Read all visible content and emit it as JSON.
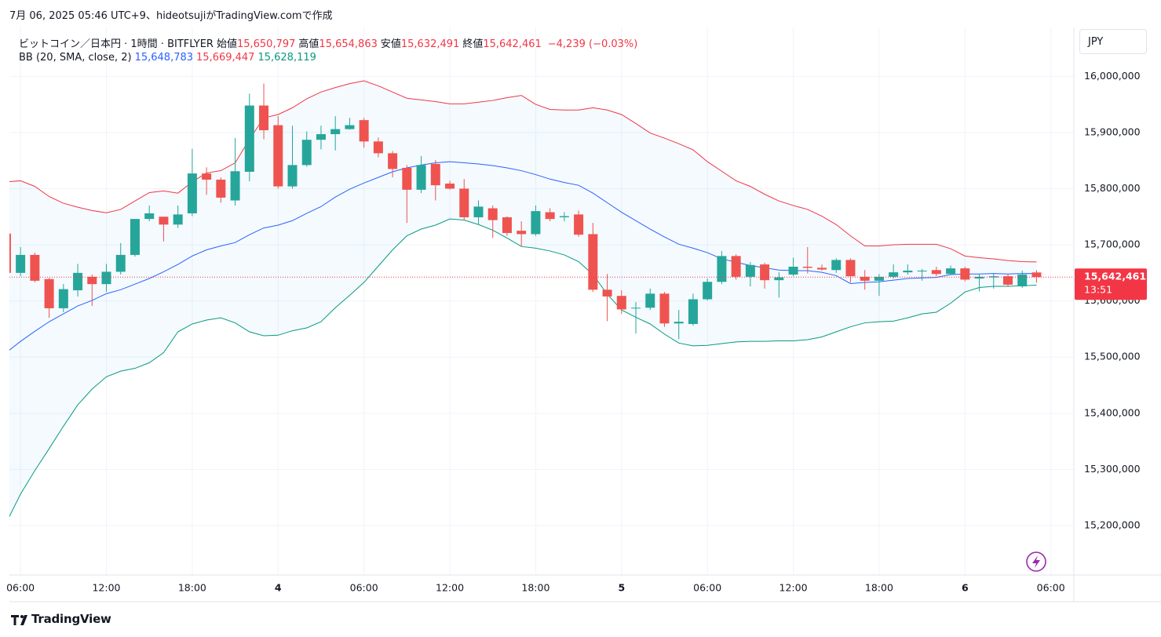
{
  "header": "7月 06, 2025 05:46 UTC+9、hideotsujiがTradingView.comで作成",
  "brand": "TradingView",
  "chart_data": {
    "type": "candlestick",
    "title": "ビットコイン／日本円 · 1時間 · BITFLYER",
    "currency": "JPY",
    "ohlc_legend": [
      {
        "label": "始値",
        "value": "15,650,797"
      },
      {
        "label": "高値",
        "value": "15,654,863"
      },
      {
        "label": "安値",
        "value": "15,632,491"
      },
      {
        "label": "終値",
        "value": "15,642,461"
      }
    ],
    "change": "−4,239 (−0.03%)",
    "up_color": "#26a69a",
    "down_color": "#ef5350",
    "grid": true,
    "ylim": [
      15112000,
      16087000
    ],
    "yticks": [
      {
        "value": 15200000,
        "label": "15,200,000"
      },
      {
        "value": 15300000,
        "label": "15,300,000"
      },
      {
        "value": 15400000,
        "label": "15,400,000"
      },
      {
        "value": 15500000,
        "label": "15,500,000"
      },
      {
        "value": 15600000,
        "label": "15,600,000"
      },
      {
        "value": 15700000,
        "label": "15,700,000"
      },
      {
        "value": 15800000,
        "label": "15,800,000"
      },
      {
        "value": 15900000,
        "label": "15,900,000"
      },
      {
        "value": 16000000,
        "label": "16,000,000"
      }
    ],
    "categories": [
      null,
      "06:00",
      null,
      null,
      null,
      null,
      null,
      "12:00",
      null,
      null,
      null,
      null,
      null,
      "18:00",
      null,
      null,
      null,
      null,
      null,
      "4",
      null,
      null,
      null,
      null,
      null,
      "06:00",
      null,
      null,
      null,
      null,
      null,
      "12:00",
      null,
      null,
      null,
      null,
      null,
      "18:00",
      null,
      null,
      null,
      null,
      null,
      "5",
      null,
      null,
      null,
      null,
      null,
      "06:00",
      null,
      null,
      null,
      null,
      null,
      "12:00",
      null,
      null,
      null,
      null,
      null,
      "18:00",
      null,
      null,
      null,
      null,
      null,
      "6",
      null,
      null,
      null,
      null,
      null,
      "06:00"
    ],
    "open": [
      15720000,
      15650000,
      15682000,
      15639000,
      15587000,
      15619000,
      15643000,
      15630000,
      15652000,
      15682000,
      15746000,
      15750000,
      15736000,
      15756000,
      15827000,
      15816000,
      15779000,
      15830000,
      15948000,
      15913000,
      15804000,
      15842000,
      15887000,
      15897000,
      15906000,
      15922000,
      15884000,
      15863000,
      15837000,
      15798000,
      15844000,
      15809000,
      15800000,
      15749000,
      15765000,
      15749000,
      15725000,
      15719000,
      15758000,
      15749000,
      15754000,
      15719000,
      15620000,
      15609000,
      15587000,
      15588000,
      15613000,
      15560000,
      15559000,
      15603000,
      15634000,
      15680000,
      15643000,
      15665000,
      15637000,
      15647000,
      15661000,
      15659000,
      15655000,
      15673000,
      15643000,
      15636000,
      15643000,
      15651000,
      15653000,
      15655000,
      15648000,
      15658000,
      15640000,
      15642000,
      15644000,
      15626000,
      15650797,
      null
    ],
    "high": [
      15720000,
      15696000,
      15686000,
      15641000,
      15630000,
      15666000,
      15647000,
      15666000,
      15703000,
      15746000,
      15770000,
      15750000,
      15770000,
      15871000,
      15838000,
      15820000,
      15890000,
      15969000,
      15987000,
      15929000,
      15912000,
      15902000,
      15912000,
      15929000,
      15926000,
      15926000,
      15891000,
      15867000,
      15842000,
      15858000,
      15851000,
      15814000,
      15817000,
      15779000,
      15770000,
      15751000,
      15742000,
      15770000,
      15765000,
      15758000,
      15761000,
      15739000,
      15648000,
      15619000,
      15598000,
      15622000,
      15616000,
      15584000,
      15613000,
      15640000,
      15689000,
      15683000,
      15669000,
      15668000,
      15651000,
      15677000,
      15696000,
      15665000,
      15676000,
      15676000,
      15655000,
      15648000,
      15665000,
      15665000,
      15657000,
      15661000,
      15663000,
      15661000,
      15647000,
      15648000,
      15647000,
      15654000,
      15654863,
      null
    ],
    "low": [
      15647000,
      15644000,
      15633000,
      15570000,
      15580000,
      15608000,
      15591000,
      15616000,
      15647000,
      15679000,
      15742000,
      15706000,
      15730000,
      15751000,
      15789000,
      15775000,
      15770000,
      15813000,
      15888000,
      15800000,
      15800000,
      15839000,
      15870000,
      15868000,
      15905000,
      15873000,
      15856000,
      15820000,
      15739000,
      15792000,
      15779000,
      15798000,
      15744000,
      15737000,
      15712000,
      15716000,
      15697000,
      15716000,
      15742000,
      15742000,
      15714000,
      15616000,
      15564000,
      15577000,
      15542000,
      15584000,
      15554000,
      15532000,
      15556000,
      15601000,
      15630000,
      15638000,
      15626000,
      15622000,
      15606000,
      15644000,
      15649000,
      15654000,
      15650000,
      15633000,
      15620000,
      15609000,
      15640000,
      15647000,
      15636000,
      15644000,
      15647000,
      15635000,
      15617000,
      15622000,
      15625000,
      15623000,
      15632491,
      null
    ],
    "close": [
      15650000,
      15682000,
      15636000,
      15587000,
      15621000,
      15650000,
      15630000,
      15652000,
      15682000,
      15746000,
      15756000,
      15736000,
      15754000,
      15827000,
      15816000,
      15784000,
      15831000,
      15948000,
      15904000,
      15804000,
      15842000,
      15887000,
      15897000,
      15906000,
      15913000,
      15884000,
      15863000,
      15835000,
      15798000,
      15842000,
      15806000,
      15800000,
      15749000,
      15768000,
      15744000,
      15721000,
      15719000,
      15760000,
      15746000,
      15751000,
      15718000,
      15620000,
      15608000,
      15585000,
      15588000,
      15613000,
      15560000,
      15563000,
      15603000,
      15634000,
      15680000,
      15643000,
      15664000,
      15637000,
      15642000,
      15661000,
      15659000,
      15656000,
      15673000,
      15644000,
      15636000,
      15643000,
      15651000,
      15654000,
      15654000,
      15648000,
      15658000,
      15638000,
      15643000,
      15644000,
      15629000,
      15647000,
      15642461,
      null
    ],
    "bollinger": {
      "name": "BB (20, SMA, close, 2)",
      "fill_color": "#2196f3",
      "value_labels": [
        "15,648,783",
        "15,669,447",
        "15,628,119"
      ],
      "basis": {
        "color": "#2962ff",
        "values": [
          15508000,
          15528000,
          15546000,
          15563000,
          15577000,
          15591000,
          15601000,
          15613000,
          15620000,
          15630000,
          15640000,
          15652000,
          15665000,
          15680000,
          15691000,
          15698000,
          15704000,
          15718000,
          15730000,
          15735000,
          15743000,
          15756000,
          15768000,
          15785000,
          15799000,
          15810000,
          15820000,
          15830000,
          15837000,
          15842000,
          15846000,
          15848000,
          15846000,
          15844000,
          15841000,
          15837000,
          15832000,
          15825000,
          15817000,
          15811000,
          15806000,
          15792000,
          15775000,
          15758000,
          15743000,
          15728000,
          15714000,
          15701000,
          15694000,
          15686000,
          15675000,
          15669000,
          15663000,
          15659000,
          15655000,
          15654000,
          15654000,
          15651000,
          15645000,
          15631000,
          15633000,
          15634000,
          15637000,
          15640000,
          15641000,
          15642000,
          15647000,
          15648000,
          15648000,
          15649000,
          15648000,
          15649000,
          15648783,
          null
        ]
      },
      "upper": {
        "color": "#f23645",
        "values": [
          15812000,
          15814000,
          15804000,
          15786000,
          15774000,
          15767000,
          15761000,
          15757000,
          15763000,
          15778000,
          15793000,
          15796000,
          15792000,
          15812000,
          15828000,
          15832000,
          15846000,
          15888000,
          15926000,
          15932000,
          15944000,
          15960000,
          15972000,
          15980000,
          15987000,
          15992000,
          15983000,
          15972000,
          15961000,
          15958000,
          15955000,
          15951000,
          15951000,
          15954000,
          15957000,
          15962000,
          15966000,
          15950000,
          15941000,
          15940000,
          15940000,
          15944000,
          15940000,
          15932000,
          15916000,
          15899000,
          15890000,
          15880000,
          15869000,
          15848000,
          15831000,
          15814000,
          15804000,
          15790000,
          15778000,
          15770000,
          15763000,
          15751000,
          15736000,
          15716000,
          15698000,
          15698000,
          15700000,
          15701000,
          15701000,
          15701000,
          15693000,
          15680000,
          15677000,
          15675000,
          15672000,
          15670000,
          15669447,
          null
        ]
      },
      "lower": {
        "color": "#089981",
        "values": [
          15205000,
          15256000,
          15298000,
          15337000,
          15377000,
          15415000,
          15443000,
          15465000,
          15475000,
          15480000,
          15490000,
          15508000,
          15545000,
          15559000,
          15566000,
          15570000,
          15561000,
          15545000,
          15538000,
          15539000,
          15547000,
          15552000,
          15563000,
          15588000,
          15610000,
          15633000,
          15662000,
          15691000,
          15716000,
          15728000,
          15735000,
          15746000,
          15744000,
          15736000,
          15726000,
          15712000,
          15697000,
          15694000,
          15689000,
          15682000,
          15670000,
          15647000,
          15612000,
          15584000,
          15571000,
          15559000,
          15541000,
          15525000,
          15520000,
          15521000,
          15524000,
          15527000,
          15528000,
          15528000,
          15529000,
          15529000,
          15531000,
          15536000,
          15545000,
          15554000,
          15561000,
          15563000,
          15564000,
          15570000,
          15577000,
          15580000,
          15596000,
          15616000,
          15624000,
          15626000,
          15626000,
          15627000,
          15628119,
          null
        ]
      }
    },
    "last_price": {
      "value": 15642461,
      "label": "15,642,461",
      "countdown": "13:51",
      "color": "#f23645"
    }
  }
}
